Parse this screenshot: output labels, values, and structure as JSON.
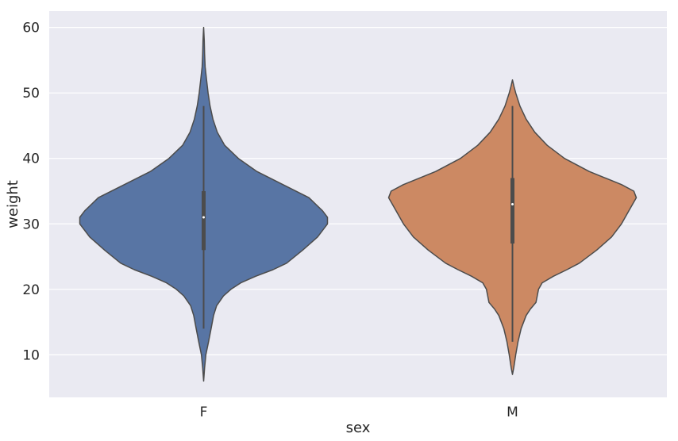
{
  "chart_data": {
    "type": "violin",
    "xlabel": "sex",
    "ylabel": "weight",
    "ylim": [
      3.5,
      62.5
    ],
    "yticks": [
      10,
      20,
      30,
      40,
      50,
      60
    ],
    "categories": [
      "F",
      "M"
    ],
    "colors": {
      "F": "#5875a4",
      "M": "#cc8963",
      "background": "#eaeaf2",
      "grid": "#ffffff",
      "outline": "#4c4c4c"
    },
    "grid": true,
    "violins": [
      {
        "category": "F",
        "min": 6,
        "q1": 26,
        "median": 31,
        "q3": 35,
        "whisker_low": 14,
        "whisker_high": 48,
        "max": 60,
        "density": [
          [
            6,
            0.0
          ],
          [
            8,
            0.008
          ],
          [
            10,
            0.018
          ],
          [
            12,
            0.04
          ],
          [
            14,
            0.06
          ],
          [
            16,
            0.08
          ],
          [
            17.5,
            0.105
          ],
          [
            19,
            0.16
          ],
          [
            20,
            0.22
          ],
          [
            21,
            0.3
          ],
          [
            22,
            0.42
          ],
          [
            23,
            0.56
          ],
          [
            24,
            0.67
          ],
          [
            26,
            0.8
          ],
          [
            28,
            0.92
          ],
          [
            30,
            1.0
          ],
          [
            31,
            1.0
          ],
          [
            32,
            0.96
          ],
          [
            34,
            0.85
          ],
          [
            36,
            0.64
          ],
          [
            38,
            0.43
          ],
          [
            40,
            0.28
          ],
          [
            42,
            0.17
          ],
          [
            44,
            0.11
          ],
          [
            46,
            0.075
          ],
          [
            48,
            0.052
          ],
          [
            50,
            0.036
          ],
          [
            52,
            0.024
          ],
          [
            54,
            0.012
          ],
          [
            56,
            0.008
          ],
          [
            58,
            0.005
          ],
          [
            60,
            0.0
          ]
        ]
      },
      {
        "category": "M",
        "min": 7,
        "q1": 27,
        "median": 33,
        "q3": 37,
        "whisker_low": 12,
        "whisker_high": 48,
        "max": 52,
        "density": [
          [
            7,
            0.0
          ],
          [
            8,
            0.01
          ],
          [
            10,
            0.026
          ],
          [
            12,
            0.045
          ],
          [
            14,
            0.07
          ],
          [
            16,
            0.11
          ],
          [
            17,
            0.145
          ],
          [
            18,
            0.19
          ],
          [
            19,
            0.2
          ],
          [
            20,
            0.21
          ],
          [
            21,
            0.24
          ],
          [
            22,
            0.33
          ],
          [
            23,
            0.44
          ],
          [
            24,
            0.54
          ],
          [
            26,
            0.68
          ],
          [
            28,
            0.8
          ],
          [
            30,
            0.88
          ],
          [
            32,
            0.94
          ],
          [
            33,
            0.97
          ],
          [
            34,
            1.0
          ],
          [
            35,
            0.98
          ],
          [
            36,
            0.88
          ],
          [
            38,
            0.62
          ],
          [
            40,
            0.42
          ],
          [
            42,
            0.28
          ],
          [
            44,
            0.18
          ],
          [
            46,
            0.11
          ],
          [
            48,
            0.06
          ],
          [
            50,
            0.026
          ],
          [
            51,
            0.012
          ],
          [
            52,
            0.0
          ]
        ]
      }
    ]
  }
}
